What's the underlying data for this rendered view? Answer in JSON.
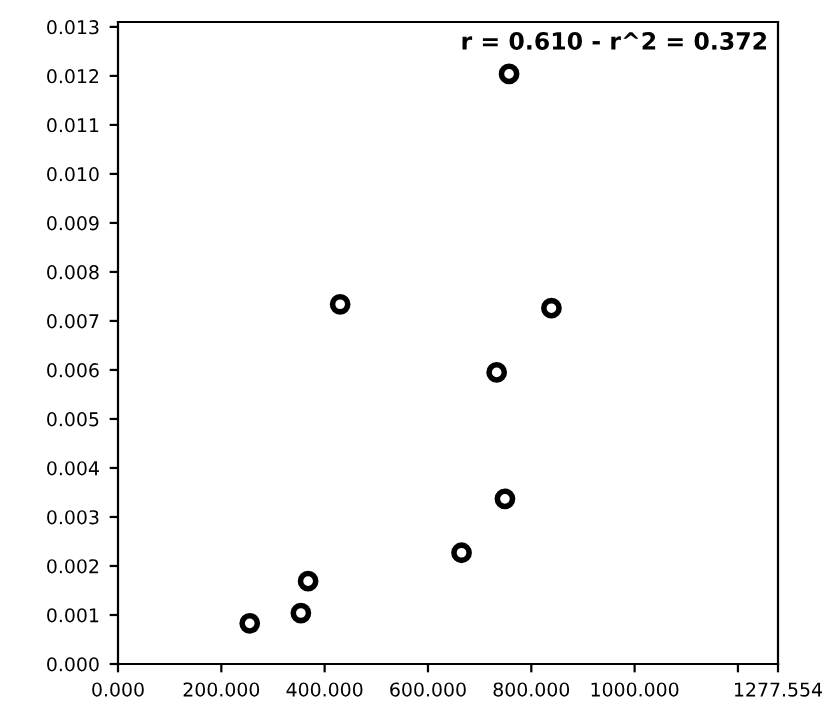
{
  "chart_data": {
    "type": "scatter",
    "x": [
      255,
      354,
      368,
      665,
      749,
      733,
      430,
      839,
      757
    ],
    "values": [
      0.00083,
      0.00104,
      0.00169,
      0.00227,
      0.00337,
      0.00595,
      0.00734,
      0.00726,
      0.01204
    ],
    "color": "#000000",
    "marker": "circle",
    "grid": false,
    "xlim": [
      0,
      1277.554
    ],
    "ylim": [
      0,
      0.0131
    ],
    "xticks": [
      {
        "value": 0,
        "label": "0.000"
      },
      {
        "value": 200,
        "label": "200.000"
      },
      {
        "value": 400,
        "label": "400.000"
      },
      {
        "value": 600,
        "label": "600.000"
      },
      {
        "value": 800,
        "label": "800.000"
      },
      {
        "value": 1000,
        "label": "1000.000"
      },
      {
        "value": 1200,
        "label": null
      },
      {
        "value": 1277.554,
        "label": "1277.554"
      }
    ],
    "yticks": [
      {
        "value": 0,
        "label": "0.000"
      },
      {
        "value": 0.001,
        "label": "0.001"
      },
      {
        "value": 0.002,
        "label": "0.002"
      },
      {
        "value": 0.003,
        "label": "0.003"
      },
      {
        "value": 0.004,
        "label": "0.004"
      },
      {
        "value": 0.005,
        "label": "0.005"
      },
      {
        "value": 0.006,
        "label": "0.006"
      },
      {
        "value": 0.007,
        "label": "0.007"
      },
      {
        "value": 0.008,
        "label": "0.008"
      },
      {
        "value": 0.009,
        "label": "0.009"
      },
      {
        "value": 0.01,
        "label": "0.010"
      },
      {
        "value": 0.011,
        "label": "0.011"
      },
      {
        "value": 0.012,
        "label": "0.012"
      },
      {
        "value": 0.013,
        "label": "0.013"
      }
    ],
    "annotations": [
      "r = 0.610 - r^2 = 0.372"
    ]
  }
}
